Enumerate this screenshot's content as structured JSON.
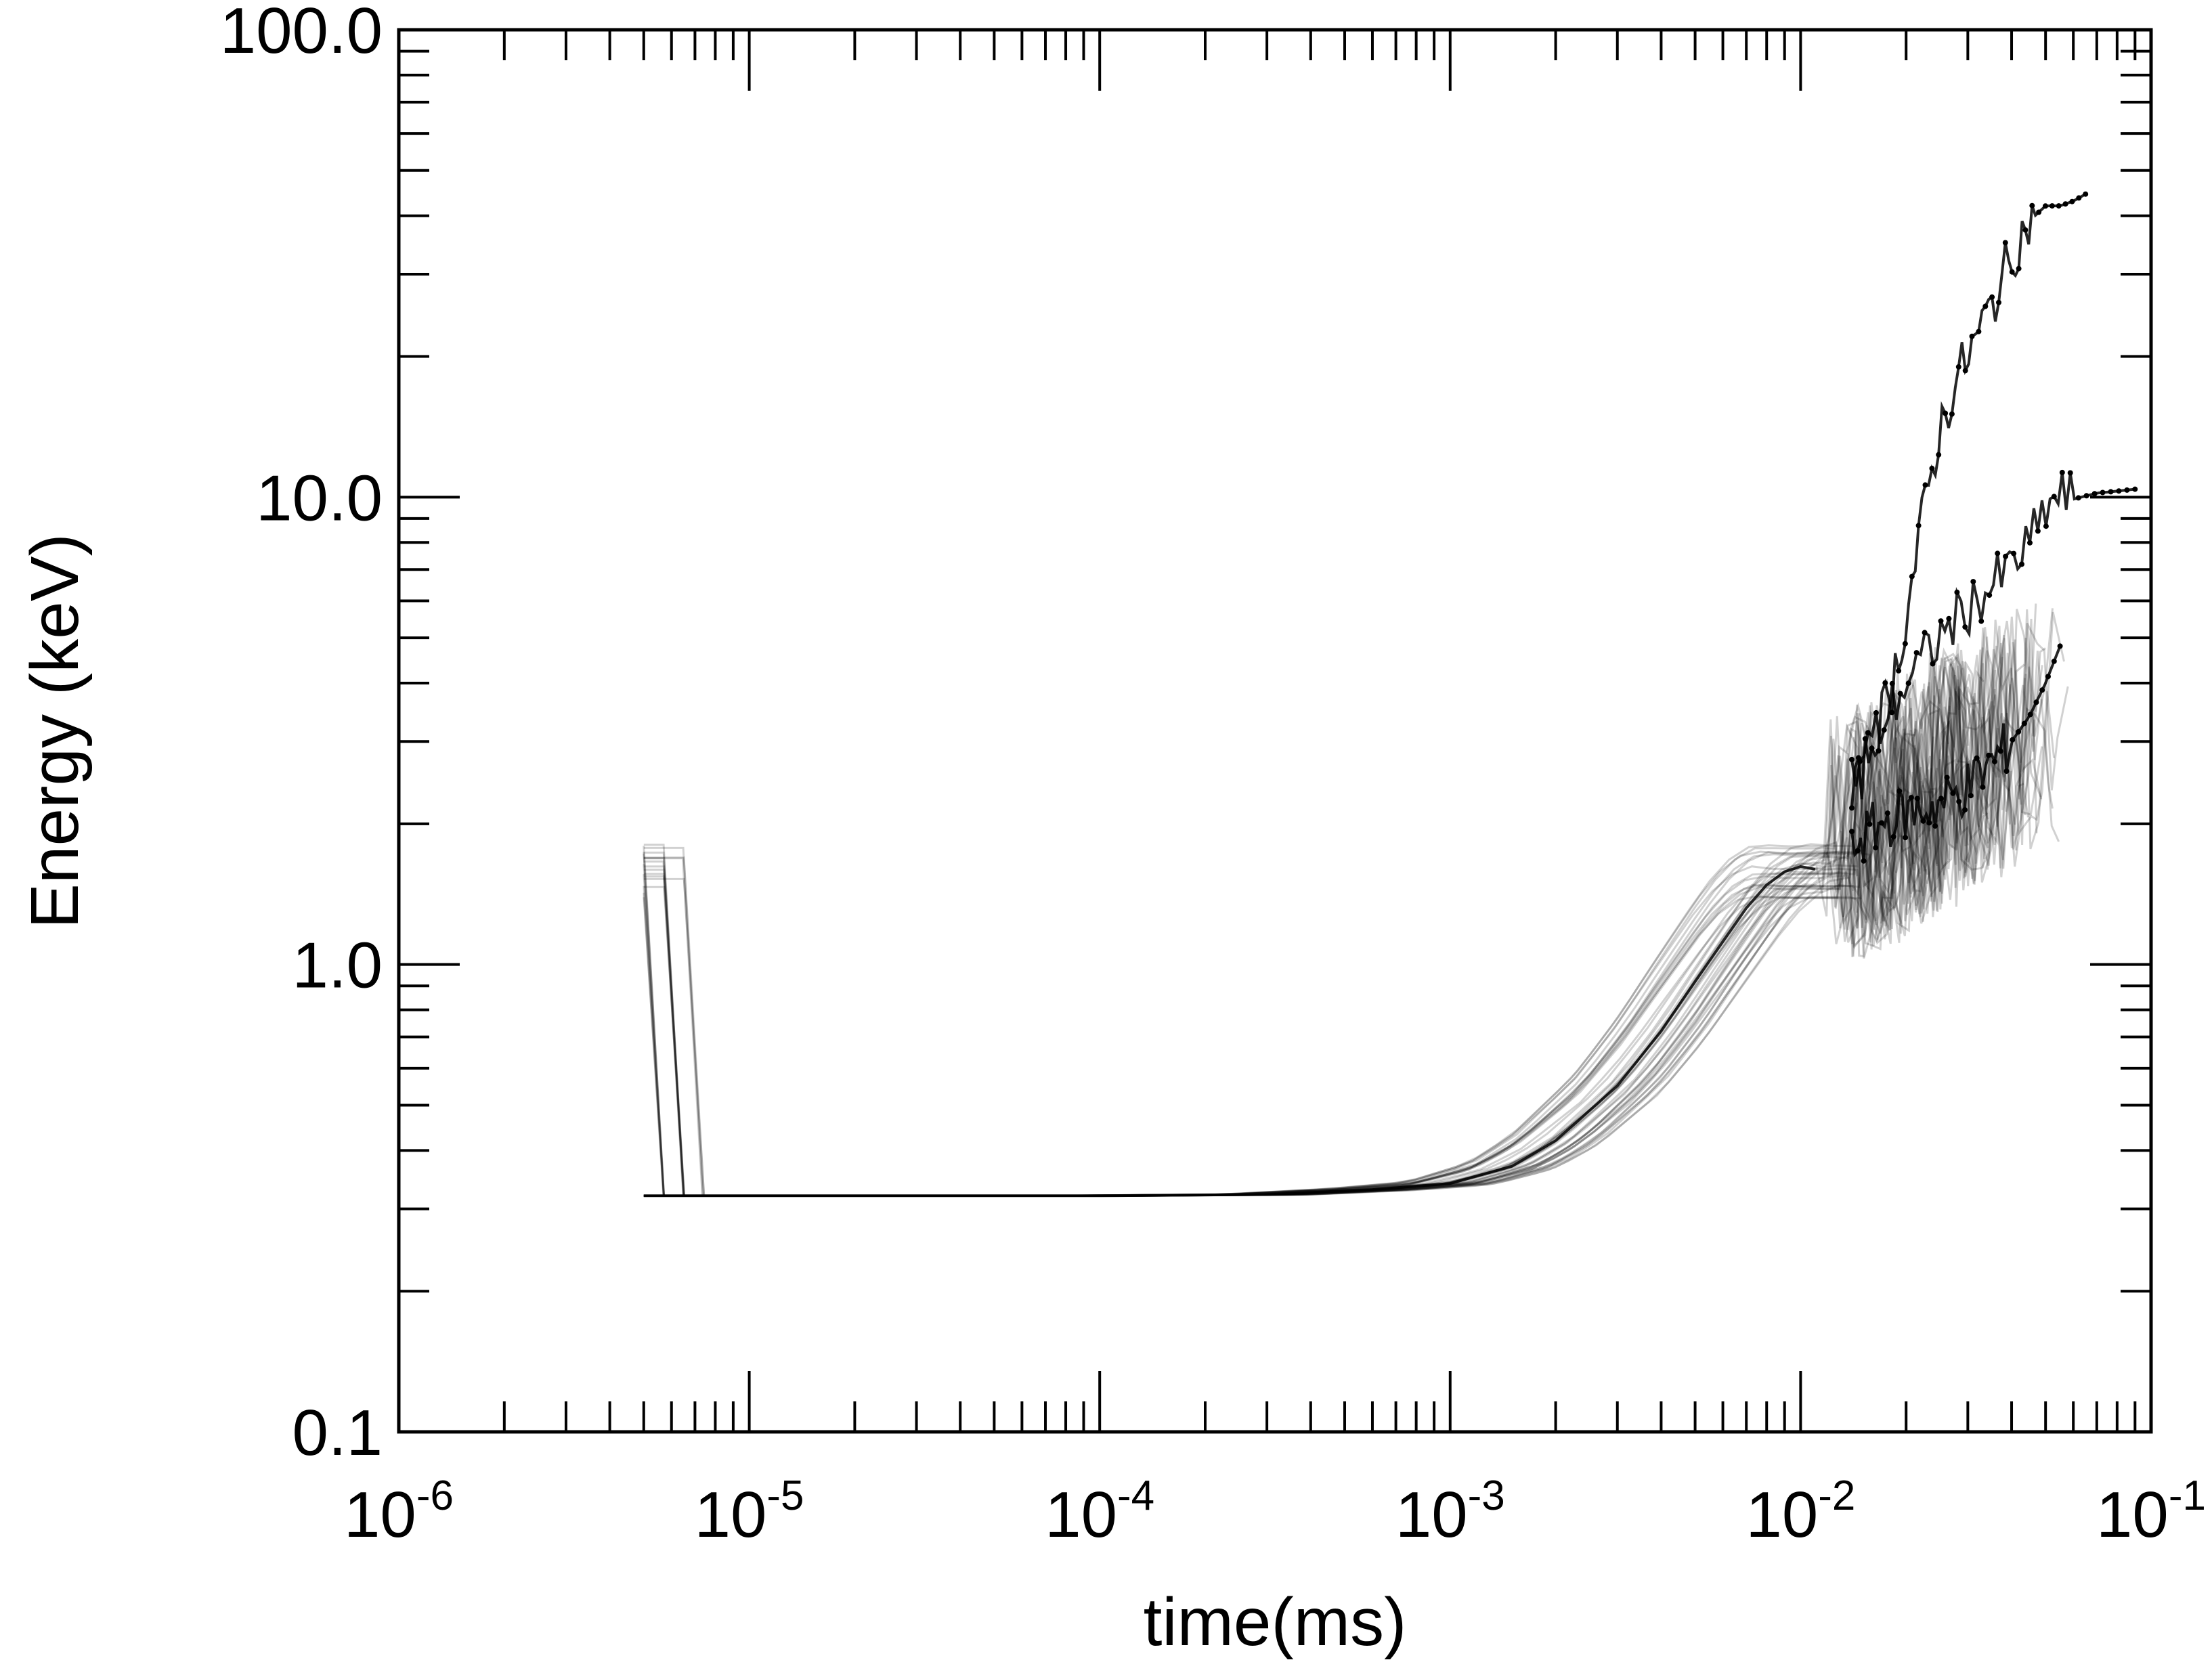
{
  "chart_data": {
    "type": "line",
    "title": "",
    "xlabel": "time(ms)",
    "ylabel": "Energy (keV)",
    "xscale": "log",
    "yscale": "log",
    "xlim": [
      1e-06,
      0.1
    ],
    "ylim": [
      0.1,
      100
    ],
    "grid": false,
    "legend": "none",
    "x_tick_labels": [
      {
        "base": "10",
        "exp": "-6",
        "value": 1e-06
      },
      {
        "base": "10",
        "exp": "-5",
        "value": 1e-05
      },
      {
        "base": "10",
        "exp": "-4",
        "value": 0.0001
      },
      {
        "base": "10",
        "exp": "-3",
        "value": 0.001
      },
      {
        "base": "10",
        "exp": "-2",
        "value": 0.01
      },
      {
        "base": "10",
        "exp": "-1",
        "value": 0.1
      }
    ],
    "y_tick_labels": [
      {
        "text": "0.1",
        "value": 0.1
      },
      {
        "text": "1.0",
        "value": 1
      },
      {
        "text": "10.0",
        "value": 10
      },
      {
        "text": "100.0",
        "value": 100
      }
    ],
    "series_common": {
      "x": [
        5e-06,
        1e-05,
        3e-05,
        0.0001,
        0.0003,
        0.0006,
        0.001,
        0.0015,
        0.002,
        0.003,
        0.004,
        0.005,
        0.006,
        0.007,
        0.008,
        0.009,
        0.01,
        0.011
      ],
      "y": [
        0.32,
        0.32,
        0.32,
        0.32,
        0.322,
        0.33,
        0.34,
        0.37,
        0.42,
        0.55,
        0.72,
        0.92,
        1.12,
        1.32,
        1.48,
        1.58,
        1.62,
        1.6
      ]
    },
    "series_upper": {
      "x": [
        0.014,
        0.016,
        0.018,
        0.02,
        0.022,
        0.025,
        0.028,
        0.032,
        0.036,
        0.04,
        0.045,
        0.05,
        0.055,
        0.06,
        0.065
      ],
      "y": [
        2.2,
        3.0,
        3.8,
        5.5,
        8.5,
        14,
        18,
        22,
        27,
        33,
        39,
        42,
        42,
        43,
        44.5
      ]
    },
    "series_mid": {
      "x": [
        0.014,
        0.016,
        0.018,
        0.02,
        0.023,
        0.026,
        0.03,
        0.035,
        0.04,
        0.045,
        0.05,
        0.055,
        0.06,
        0.07,
        0.08,
        0.09
      ],
      "y": [
        2.5,
        3.0,
        3.5,
        4.0,
        4.6,
        5.2,
        5.8,
        6.4,
        7.1,
        7.9,
        9.4,
        10.1,
        9.9,
        10.2,
        10.3,
        10.4
      ]
    },
    "series_low": {
      "x": [
        0.014,
        0.017,
        0.02,
        0.025,
        0.03,
        0.035,
        0.04,
        0.045,
        0.05,
        0.055
      ],
      "y": [
        1.8,
        2.0,
        2.1,
        2.2,
        2.4,
        2.7,
        3.0,
        3.4,
        4.0,
        4.8
      ]
    }
  }
}
